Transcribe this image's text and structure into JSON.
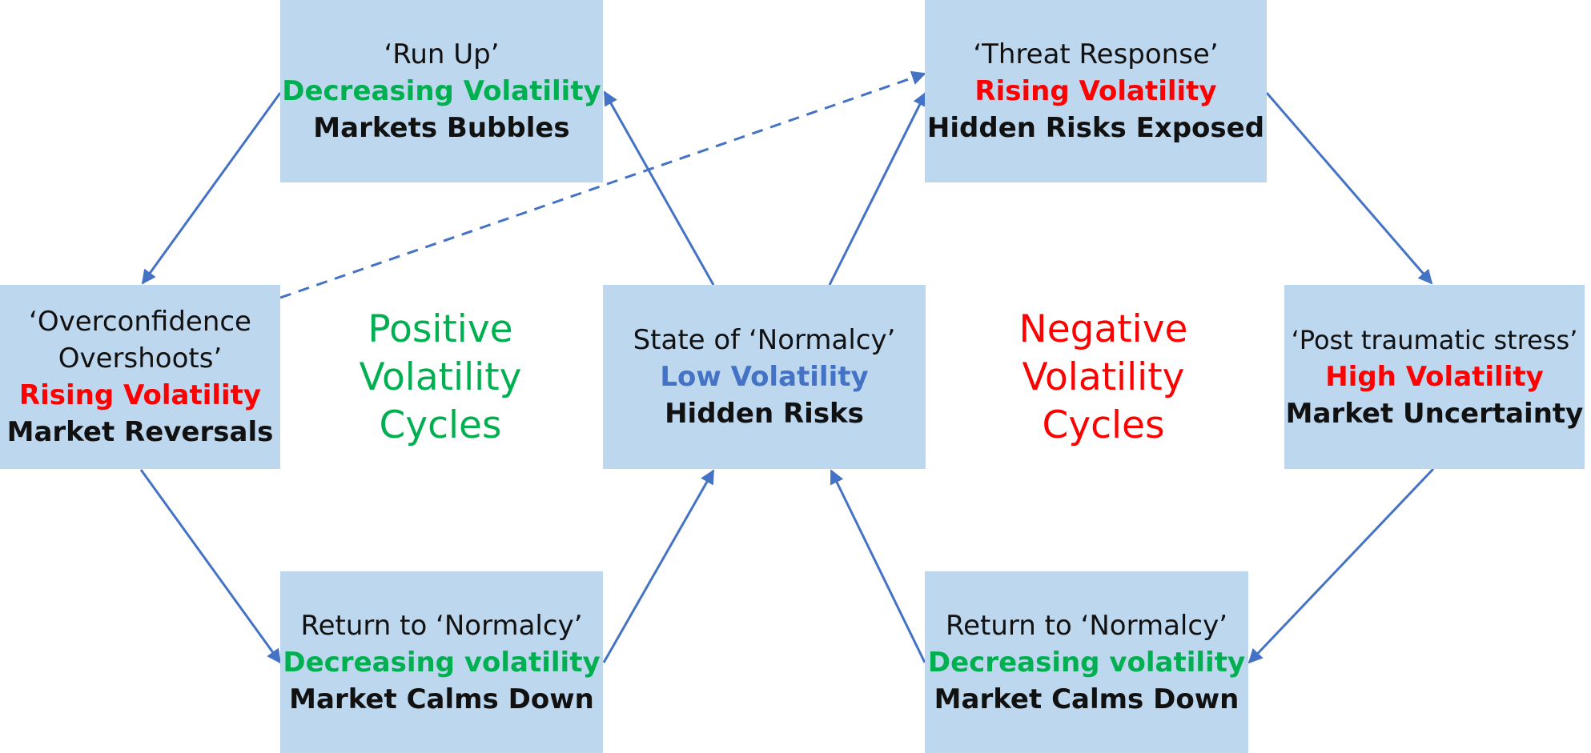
{
  "colors": {
    "box_fill": "#bdd7ee",
    "arrow": "#4472c4",
    "green": "#00b050",
    "red": "#ff0000",
    "blue": "#4472c4",
    "dark": "#111111"
  },
  "boxes": {
    "run_up": {
      "title": "‘Run Up’",
      "volatility": "Decreasing Volatility",
      "effect": "Markets Bubbles"
    },
    "overconfidence": {
      "title1": "‘Overconfidence",
      "title2": "Overshoots’",
      "volatility": "Rising Volatility",
      "effect": "Market Reversals"
    },
    "return_left": {
      "title": "Return to ‘Normalcy’",
      "volatility": "Decreasing volatility",
      "effect": "Market Calms Down"
    },
    "normalcy": {
      "title": "State of ‘Normalcy’",
      "volatility": "Low Volatility",
      "effect": "Hidden Risks"
    },
    "threat": {
      "title": "‘Threat Response’",
      "volatility": "Rising Volatility",
      "effect": "Hidden Risks Exposed"
    },
    "post_traumatic": {
      "title": "‘Post traumatic stress’",
      "volatility": "High Volatility",
      "effect": "Market Uncertainty"
    },
    "return_right": {
      "title": "Return to ‘Normalcy’",
      "volatility": "Decreasing volatility",
      "effect": "Market Calms Down"
    }
  },
  "labels": {
    "positive": [
      "Positive",
      "Volatility",
      "Cycles"
    ],
    "negative": [
      "Negative",
      "Volatility",
      "Cycles"
    ]
  }
}
